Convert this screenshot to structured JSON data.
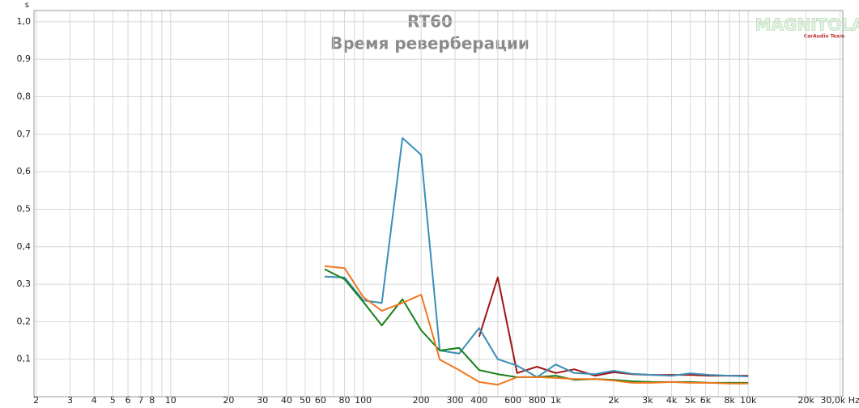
{
  "chart_data": {
    "type": "line",
    "title": "RT60",
    "subtitle": "Время реверберации",
    "y_unit": "s",
    "logo": {
      "text": "MAGNITOLA",
      "tagline": "CarAudio Team"
    },
    "x": [
      63,
      80,
      100,
      125,
      160,
      200,
      250,
      315,
      400,
      500,
      630,
      800,
      1000,
      1250,
      1600,
      2000,
      2500,
      3150,
      4000,
      5000,
      6300,
      8000,
      10000
    ],
    "series": [
      {
        "name": "red",
        "color": "#a01414",
        "values": [
          null,
          null,
          null,
          null,
          null,
          null,
          null,
          null,
          0.16,
          0.318,
          0.063,
          0.08,
          0.063,
          0.073,
          0.056,
          0.065,
          0.06,
          0.058,
          0.058,
          0.058,
          0.056,
          0.056,
          0.056
        ]
      },
      {
        "name": "blue",
        "color": "#3a8fb7",
        "values": [
          0.32,
          0.318,
          0.257,
          0.25,
          0.69,
          0.645,
          0.123,
          0.115,
          0.183,
          0.1,
          0.083,
          0.052,
          0.086,
          0.063,
          0.06,
          0.069,
          0.061,
          0.058,
          0.056,
          0.062,
          0.058,
          0.056,
          0.054
        ]
      },
      {
        "name": "green",
        "color": "#17801a",
        "values": [
          0.34,
          0.313,
          0.253,
          0.19,
          0.26,
          0.177,
          0.123,
          0.13,
          0.071,
          0.06,
          0.052,
          0.052,
          0.056,
          0.045,
          0.047,
          0.045,
          0.041,
          0.039,
          0.039,
          0.039,
          0.037,
          0.037,
          0.037
        ]
      },
      {
        "name": "orange",
        "color": "#f07820",
        "values": [
          0.348,
          0.343,
          0.266,
          0.229,
          0.25,
          0.272,
          0.099,
          0.071,
          0.039,
          0.032,
          0.052,
          0.052,
          0.05,
          0.047,
          0.047,
          0.043,
          0.037,
          0.037,
          0.039,
          0.037,
          0.037,
          0.035,
          0.035
        ]
      }
    ],
    "xscale": "log",
    "xlim": [
      1.95,
      31000
    ],
    "xticks": [
      2,
      3,
      4,
      5,
      6,
      7,
      8,
      10,
      20,
      30,
      40,
      50,
      60,
      80,
      100,
      200,
      300,
      400,
      600,
      800,
      {
        "value": 1000,
        "label": "1k"
      },
      {
        "value": 2000,
        "label": "2k"
      },
      {
        "value": 3000,
        "label": "3k"
      },
      {
        "value": 4000,
        "label": "4k"
      },
      {
        "value": 5000,
        "label": "5k"
      },
      {
        "value": 6000,
        "label": "6k"
      },
      {
        "value": 8000,
        "label": "8k"
      },
      {
        "value": 10000,
        "label": "10k"
      },
      {
        "value": 20000,
        "label": "20k"
      },
      {
        "value": 30000,
        "label": "30,0k Hz"
      }
    ],
    "xminorticks": [
      9,
      70,
      90,
      500,
      700,
      900,
      7000,
      9000
    ],
    "ylim": [
      0,
      1.03
    ],
    "yticks": [
      {
        "value": 0.1,
        "label": "0,1"
      },
      {
        "value": 0.2,
        "label": "0,2"
      },
      {
        "value": 0.3,
        "label": "0,3"
      },
      {
        "value": 0.4,
        "label": "0,4"
      },
      {
        "value": 0.5,
        "label": "0,5"
      },
      {
        "value": 0.6,
        "label": "0,6"
      },
      {
        "value": 0.7,
        "label": "0,7"
      },
      {
        "value": 0.8,
        "label": "0,8"
      },
      {
        "value": 0.9,
        "label": "0,9"
      },
      {
        "value": 1.0,
        "label": "1,0"
      }
    ],
    "grid": true
  }
}
